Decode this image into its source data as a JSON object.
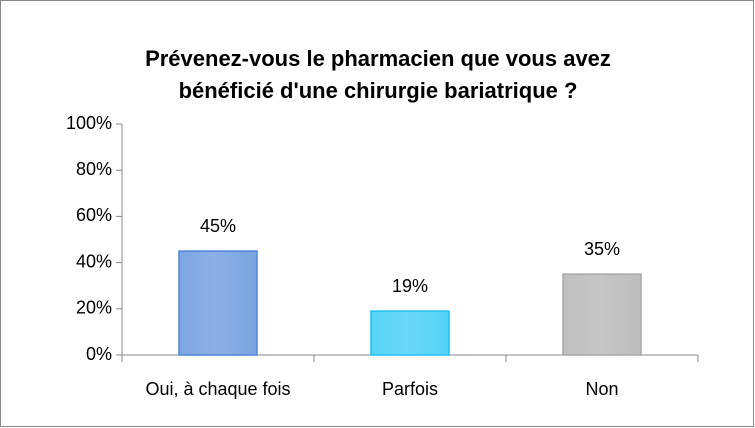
{
  "chart_data": {
    "type": "bar",
    "title": [
      "Prévenez-vous le pharmacien que vous avez",
      "bénéficié d'une chirurgie bariatrique ?"
    ],
    "categories": [
      "Oui, à chaque fois",
      "Parfois",
      "Non"
    ],
    "values": [
      45,
      19,
      35
    ],
    "value_labels": [
      "45%",
      "19%",
      "35%"
    ],
    "colors": [
      "#4f86d6",
      "#1cc4f4",
      "#a8a8a8"
    ],
    "ylim": [
      0,
      100
    ],
    "yticks": [
      {
        "value": 0,
        "label": "0%"
      },
      {
        "value": 20,
        "label": "20%"
      },
      {
        "value": 40,
        "label": "40%"
      },
      {
        "value": 60,
        "label": "60%"
      },
      {
        "value": 80,
        "label": "80%"
      },
      {
        "value": 100,
        "label": "100%"
      }
    ],
    "grid": false
  }
}
